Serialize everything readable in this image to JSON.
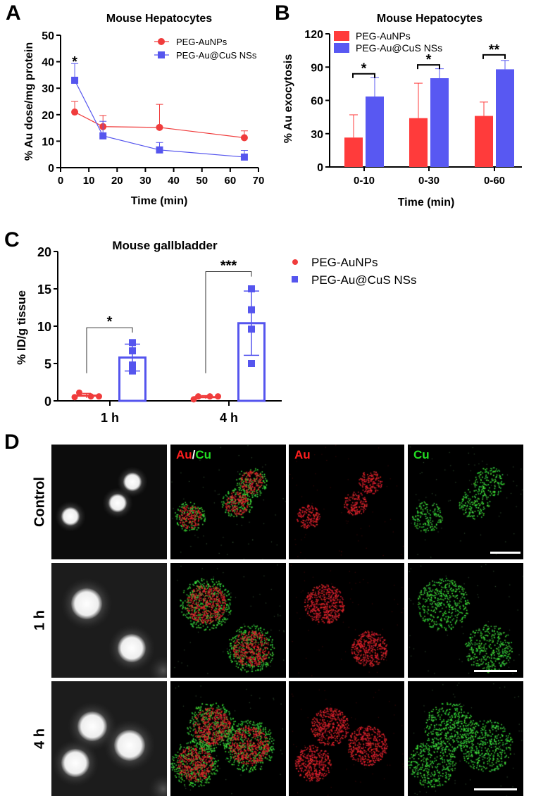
{
  "figure": {
    "panels": {
      "A": "A",
      "B": "B",
      "C": "C",
      "D": "D"
    }
  },
  "colors": {
    "red": "#F03C3C",
    "blue": "#5555EE",
    "red_bar": "#FF3B3B",
    "blue_bar": "#5858F2"
  },
  "chart_data": [
    {
      "id": "A",
      "type": "line",
      "title": "Mouse Hepatocytes",
      "xlabel": "Time (min)",
      "ylabel": "% Au dose/mg protein",
      "xlim": [
        0,
        70
      ],
      "ylim": [
        0,
        50
      ],
      "xticks": [
        0,
        10,
        20,
        30,
        40,
        50,
        60,
        70
      ],
      "yticks": [
        0,
        10,
        20,
        30,
        40,
        50
      ],
      "grid": false,
      "legend_position": "top-right",
      "x": [
        5,
        15,
        35,
        65
      ],
      "series": [
        {
          "name": "PEG-AuNPs",
          "marker": "circle",
          "color": "#F03C3C",
          "values": [
            21,
            15.5,
            15.2,
            11.3
          ],
          "error": [
            4,
            4.2,
            8.7,
            2.6
          ]
        },
        {
          "name": "PEG-Au@CuS NSs",
          "marker": "square",
          "color": "#5555EE",
          "values": [
            33,
            12,
            6.7,
            4
          ],
          "error": [
            6.3,
            5.5,
            2.8,
            2.5
          ]
        }
      ],
      "annotations": [
        {
          "text": "*",
          "x": 5,
          "y": 41.5
        }
      ]
    },
    {
      "id": "B",
      "type": "bar",
      "title": "Mouse Hepatocytes",
      "xlabel": "Time (min)",
      "ylabel": "% Au exocytosis",
      "ylim": [
        0,
        120
      ],
      "yticks": [
        0,
        30,
        60,
        90,
        120
      ],
      "grid": false,
      "legend_position": "top-left",
      "categories": [
        "0-10",
        "0-30",
        "0-60"
      ],
      "series": [
        {
          "name": "PEG-AuNPs",
          "color": "#FF3B3B",
          "values": [
            26.5,
            44,
            46
          ],
          "error": [
            20.5,
            31.5,
            12.5
          ]
        },
        {
          "name": "PEG-Au@CuS NSs",
          "color": "#5858F2",
          "values": [
            63.5,
            80,
            88
          ],
          "error": [
            17,
            8.5,
            8
          ]
        }
      ],
      "annotations": [
        {
          "category": "0-10",
          "text": "*",
          "bracket_y": 84
        },
        {
          "category": "0-30",
          "text": "*",
          "bracket_y": 92
        },
        {
          "category": "0-60",
          "text": "**",
          "bracket_y": 101
        }
      ]
    },
    {
      "id": "C",
      "type": "bar",
      "title": "Mouse gallbladder",
      "xlabel": "",
      "ylabel": "% ID/g tissue",
      "ylim": [
        0,
        20
      ],
      "yticks": [
        0,
        5,
        10,
        15,
        20
      ],
      "grid": false,
      "legend_position": "right",
      "categories": [
        "1 h",
        "4 h"
      ],
      "series": [
        {
          "name": "PEG-AuNPs",
          "marker": "circle",
          "color": "#F03C3C",
          "values": [
            0.7,
            0.5
          ],
          "error": [
            0.3,
            0.2
          ],
          "points": [
            [
              0.5,
              1.1,
              0.6,
              0.6
            ],
            [
              0.2,
              0.6,
              0.6,
              0.6
            ]
          ]
        },
        {
          "name": "PEG-Au@CuS NSs",
          "marker": "square",
          "color": "#5555EE",
          "values": [
            5.8,
            10.4
          ],
          "error": [
            1.8,
            4.3
          ],
          "points": [
            [
              7.8,
              6.7,
              4.8,
              4.0
            ],
            [
              15.0,
              12.2,
              9.6,
              5.0
            ]
          ]
        }
      ],
      "annotations": [
        {
          "category": "1 h",
          "text": "*",
          "bracket_y": 9.8
        },
        {
          "category": "4 h",
          "text": "***",
          "bracket_y": 17.3
        }
      ]
    }
  ],
  "panel_D": {
    "rows": [
      "Control",
      "1 h",
      "4 h"
    ],
    "columns": [
      {
        "label_parts": [],
        "type": "darkfield"
      },
      {
        "label_parts": [
          {
            "text": "Au",
            "color": "#FF1E1E"
          },
          {
            "text": "/",
            "color": "#FFFFFF"
          },
          {
            "text": "Cu",
            "color": "#22DD22"
          }
        ],
        "type": "merge"
      },
      {
        "label_parts": [
          {
            "text": "Au",
            "color": "#FF1E1E"
          }
        ],
        "type": "au"
      },
      {
        "label_parts": [
          {
            "text": "Cu",
            "color": "#22DD22"
          }
        ],
        "type": "cu"
      }
    ],
    "column_labels": {
      "merge_au": "Au",
      "merge_slash": "/",
      "merge_cu": "Cu",
      "au": "Au",
      "cu": "Cu"
    },
    "cells": [
      {
        "blobs": [
          [
            27,
            102,
            13
          ],
          [
            94,
            83,
            13
          ],
          [
            115,
            53,
            13
          ]
        ],
        "scale_bar": {
          "x": 125,
          "w": 43
        }
      },
      {
        "blobs": [
          [
            50,
            58,
            22
          ],
          [
            114,
            121,
            20
          ]
        ],
        "scale_bar": {
          "x": 102,
          "w": 61
        }
      },
      {
        "blobs": [
          [
            58,
            64,
            21
          ],
          [
            111,
            91,
            22
          ],
          [
            34,
            116,
            20
          ]
        ],
        "scale_bar": {
          "x": 102,
          "w": 61
        }
      }
    ]
  }
}
